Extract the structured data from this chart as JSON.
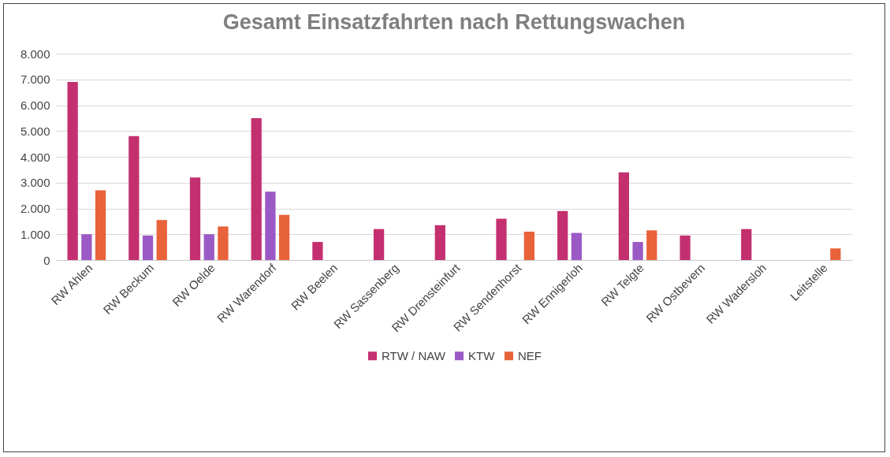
{
  "chart_data": {
    "type": "bar",
    "title": "Gesamt Einsatzfahrten nach Rettungswachen",
    "categories": [
      "RW Ahlen",
      "RW Beckum",
      "RW Oelde",
      "RW Warendorf",
      "RW Beelen",
      "RW Sassenberg",
      "RW Drensteinfurt",
      "RW Sendenhorst",
      "RW Ennigerloh",
      "RW Telgte",
      "RW Ostbevern",
      "RW Wadersloh",
      "Leitstelle"
    ],
    "series": [
      {
        "name": "RTW / NAW",
        "color": "#c4306f",
        "values": [
          6900,
          4800,
          3200,
          5500,
          700,
          1200,
          1350,
          1600,
          1900,
          3400,
          950,
          1200,
          null
        ]
      },
      {
        "name": "KTW",
        "color": "#9b59c6",
        "values": [
          1000,
          950,
          1000,
          2650,
          null,
          null,
          null,
          null,
          1050,
          700,
          null,
          null,
          null
        ]
      },
      {
        "name": "NEF",
        "color": "#e8623a",
        "values": [
          2700,
          1550,
          1300,
          1750,
          null,
          null,
          null,
          1100,
          null,
          1150,
          null,
          null,
          450
        ]
      }
    ],
    "ylim": [
      0,
      8000
    ],
    "yticks": [
      0,
      {
        "value": 1000,
        "label": "1.000"
      },
      {
        "value": 2000,
        "label": "2.000"
      },
      {
        "value": 3000,
        "label": "3.000"
      },
      {
        "value": 4000,
        "label": "4.000"
      },
      {
        "value": 5000,
        "label": "5.000"
      },
      {
        "value": 6000,
        "label": "6.000"
      },
      {
        "value": 7000,
        "label": "7.000"
      },
      {
        "value": 8000,
        "label": "8.000"
      }
    ],
    "grid": "y",
    "legend": "bottom"
  }
}
